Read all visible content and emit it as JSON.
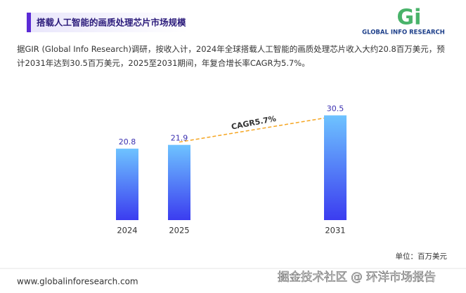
{
  "header": {
    "title": "搭载人工智能的画质处理芯片市场规模",
    "logo": "GLOBAL INFO RESEARCH"
  },
  "intro": "据GIR (Global Info Research)调研，按收入计，2024年全球搭载人工智能的画质处理芯片收入大约20.8百万美元，预计2031年达到30.5百万美元，2025至2031期间，年复合增长率CAGR为5.7%。",
  "chart_data": {
    "type": "bar",
    "categories": [
      "2024",
      "2025",
      "2031"
    ],
    "values": [
      20.8,
      21.9,
      30.5
    ],
    "color": "#4a63f5",
    "annotation": "CAGR5.7%",
    "unit": "单位：百万美元"
  },
  "footer": {
    "url": "www.globalinforesearch.com",
    "watermark": "掘金技术社区 @ 环洋市场报告"
  }
}
